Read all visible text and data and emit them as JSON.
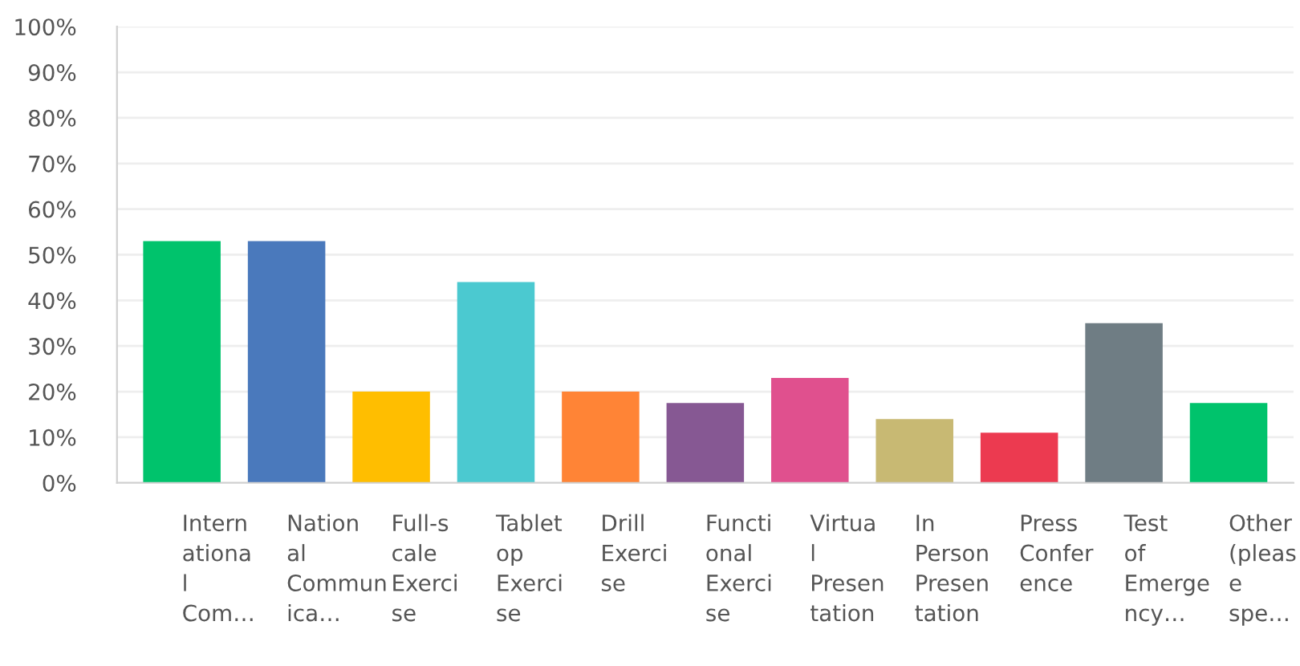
{
  "chart_data": {
    "type": "bar",
    "categories": [
      "Intern\nationa\nl\nCom…",
      "Nation\nal\nCommun\nica…",
      "Full-s\ncale\nExerci\nse",
      "Tablet\nop\nExerci\nse",
      "Drill\nExerci\nse",
      "Functi\nonal\nExerci\nse",
      "Virtua\nl\nPresen\ntation",
      "In\nPerson\nPresen\ntation",
      "Press\nConfer\nence",
      "Test\nof\nEmerge\nncy…",
      "Other\n(pleas\ne\nspe…"
    ],
    "values": [
      53,
      53,
      20,
      44,
      20,
      17.5,
      23,
      14,
      11,
      35,
      17.5
    ],
    "colors": [
      "#00c36c",
      "#4a79bc",
      "#ffbe00",
      "#4bc9d0",
      "#ff8436",
      "#865893",
      "#e0508e",
      "#c8b973",
      "#ec3a50",
      "#6f7d84",
      "#00c36c"
    ],
    "ylim": [
      0,
      100
    ],
    "yticks": [
      {
        "value": 0,
        "label": "0%"
      },
      {
        "value": 10,
        "label": "10%"
      },
      {
        "value": 20,
        "label": "20%"
      },
      {
        "value": 30,
        "label": "30%"
      },
      {
        "value": 40,
        "label": "40%"
      },
      {
        "value": 50,
        "label": "50%"
      },
      {
        "value": 60,
        "label": "60%"
      },
      {
        "value": 70,
        "label": "70%"
      },
      {
        "value": 80,
        "label": "80%"
      },
      {
        "value": 90,
        "label": "90%"
      },
      {
        "value": 100,
        "label": "100%"
      }
    ],
    "grid": "y"
  }
}
